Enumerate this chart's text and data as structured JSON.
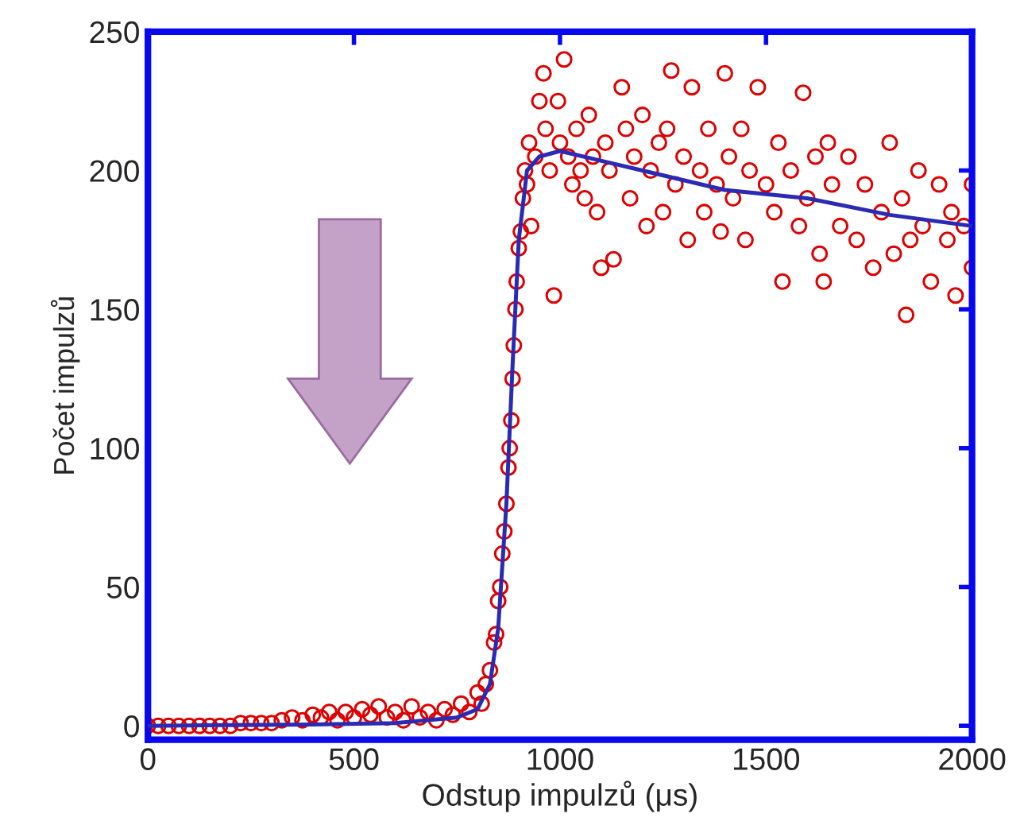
{
  "chart_data": {
    "type": "scatter",
    "xlabel": "Odstup impulzů (μs)",
    "ylabel": "Počet impulzů",
    "xlim": [
      0,
      2000
    ],
    "ylim": [
      -5,
      250
    ],
    "xticks": [
      0,
      500,
      1000,
      1500,
      2000
    ],
    "yticks": [
      0,
      50,
      100,
      150,
      200,
      250
    ],
    "grid": false,
    "legend": false,
    "series": [
      {
        "marker": "circle",
        "color": "#dd0000",
        "x": [
          0,
          25,
          50,
          75,
          100,
          125,
          150,
          175,
          200,
          225,
          250,
          275,
          300,
          325,
          350,
          375,
          400,
          420,
          440,
          460,
          480,
          500,
          520,
          540,
          560,
          580,
          600,
          620,
          640,
          660,
          680,
          700,
          720,
          740,
          760,
          780,
          800,
          810,
          820,
          830,
          840,
          845,
          850,
          855,
          860,
          865,
          870,
          875,
          878,
          882,
          885,
          888,
          892,
          895,
          900,
          905,
          910,
          915,
          920,
          925,
          930,
          940,
          950,
          960,
          965,
          975,
          985,
          995,
          1000,
          1010,
          1020,
          1030,
          1040,
          1050,
          1060,
          1070,
          1080,
          1090,
          1100,
          1110,
          1120,
          1130,
          1150,
          1160,
          1170,
          1180,
          1200,
          1210,
          1220,
          1240,
          1250,
          1260,
          1270,
          1280,
          1300,
          1310,
          1320,
          1340,
          1350,
          1360,
          1380,
          1390,
          1400,
          1410,
          1420,
          1440,
          1450,
          1460,
          1480,
          1500,
          1520,
          1530,
          1540,
          1560,
          1580,
          1590,
          1600,
          1620,
          1630,
          1640,
          1650,
          1660,
          1680,
          1700,
          1720,
          1740,
          1760,
          1780,
          1800,
          1810,
          1830,
          1840,
          1850,
          1870,
          1880,
          1900,
          1920,
          1940,
          1950,
          1960,
          1980,
          2000,
          2000
        ],
        "values": [
          0,
          0,
          0,
          0,
          0,
          0,
          0,
          0,
          0,
          1,
          1,
          1,
          1,
          2,
          3,
          2,
          4,
          3,
          5,
          2,
          5,
          3,
          6,
          4,
          7,
          3,
          5,
          2,
          7,
          3,
          5,
          2,
          6,
          4,
          8,
          5,
          12,
          8,
          15,
          20,
          30,
          33,
          45,
          50,
          62,
          70,
          80,
          93,
          100,
          110,
          125,
          137,
          150,
          160,
          172,
          178,
          190,
          200,
          195,
          210,
          180,
          205,
          225,
          235,
          215,
          200,
          155,
          225,
          210,
          240,
          205,
          195,
          215,
          200,
          190,
          220,
          205,
          185,
          165,
          210,
          200,
          168,
          230,
          215,
          190,
          205,
          220,
          180,
          200,
          210,
          185,
          215,
          236,
          195,
          205,
          175,
          230,
          200,
          185,
          215,
          195,
          178,
          235,
          205,
          190,
          215,
          175,
          200,
          230,
          195,
          185,
          210,
          160,
          200,
          180,
          228,
          190,
          205,
          170,
          160,
          210,
          195,
          180,
          205,
          175,
          195,
          165,
          185,
          210,
          170,
          190,
          148,
          175,
          200,
          180,
          160,
          195,
          175,
          185,
          155,
          180,
          165,
          195
        ]
      },
      {
        "type": "line",
        "line_style": "solid",
        "marker": "none",
        "color": "#2a2ab4",
        "x": [
          0,
          400,
          600,
          750,
          800,
          830,
          850,
          870,
          885,
          900,
          920,
          950,
          1000,
          1200,
          1400,
          1600,
          1800,
          2000
        ],
        "values": [
          0,
          0.5,
          1,
          3,
          6,
          15,
          35,
          80,
          130,
          175,
          200,
          205,
          207,
          200,
          193,
          190,
          184,
          180
        ]
      }
    ]
  }
}
